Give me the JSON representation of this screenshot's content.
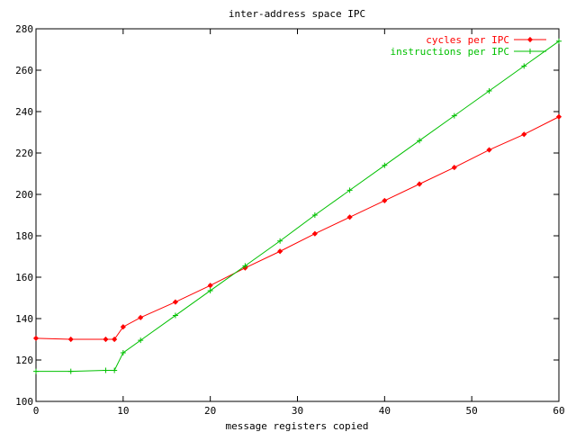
{
  "title": "inter-address space IPC",
  "xlabel": "message registers copied",
  "ylabel": "",
  "legend_position": "top-right",
  "chart_data": {
    "type": "line",
    "title": "inter-address space IPC",
    "xlabel": "message registers copied",
    "ylabel": "",
    "xlim": [
      0,
      60
    ],
    "ylim": [
      100,
      280
    ],
    "xticks": [
      0,
      10,
      20,
      30,
      40,
      50,
      60
    ],
    "yticks": [
      100,
      120,
      140,
      160,
      180,
      200,
      220,
      240,
      260,
      280
    ],
    "grid": false,
    "legend": "top-right",
    "series": [
      {
        "name": "cycles per IPC",
        "color": "#ff0000",
        "marker": "diamond",
        "x": [
          0,
          4,
          8,
          9,
          10,
          12,
          16,
          20,
          24,
          28,
          32,
          36,
          40,
          44,
          48,
          52,
          56,
          60
        ],
        "y": [
          130.5,
          130,
          130,
          130,
          136,
          140.5,
          148,
          156,
          164.5,
          172.5,
          181,
          189,
          197,
          205,
          213,
          221.5,
          229,
          237.5
        ]
      },
      {
        "name": "instructions per IPC",
        "color": "#00c000",
        "marker": "plus",
        "x": [
          0,
          4,
          8,
          9,
          10,
          12,
          16,
          20,
          24,
          28,
          32,
          36,
          40,
          44,
          48,
          52,
          56,
          60
        ],
        "y": [
          114.5,
          114.5,
          115,
          115,
          123.5,
          129.5,
          141.5,
          153.5,
          165.5,
          177.5,
          190,
          202,
          214,
          226,
          238,
          250,
          262,
          274
        ]
      }
    ]
  }
}
